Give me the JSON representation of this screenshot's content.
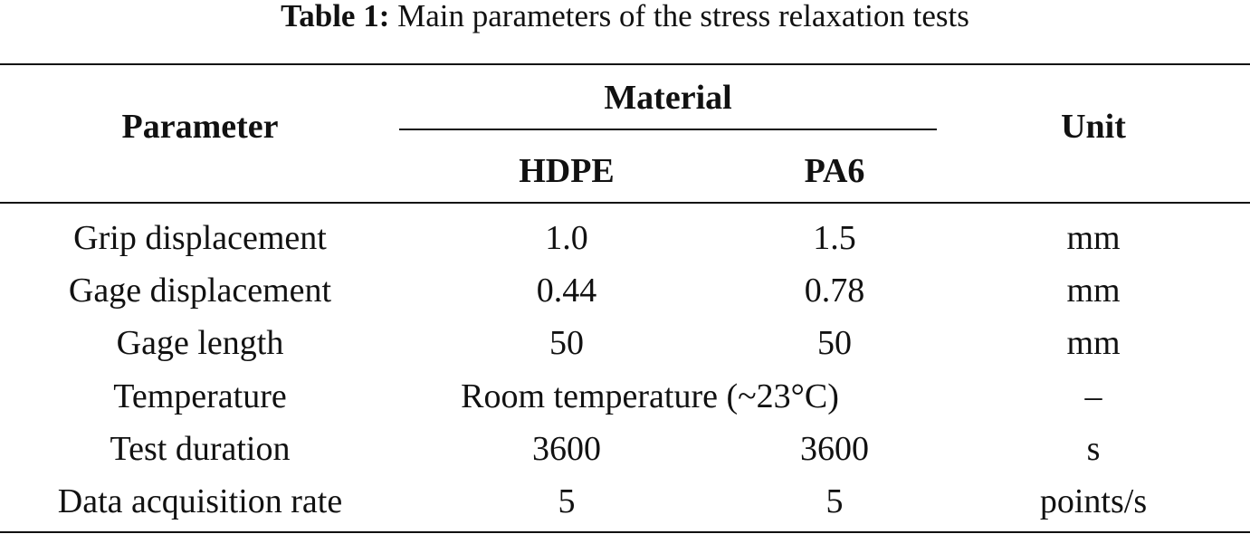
{
  "caption": {
    "label": "Table 1:",
    "text": "Main parameters of the stress relaxation tests"
  },
  "table": {
    "header": {
      "parameter": "Parameter",
      "material": "Material",
      "materials": [
        "HDPE",
        "PA6"
      ],
      "unit": "Unit"
    },
    "rows": [
      [
        "Grip displacement",
        "1.0",
        "1.5",
        "mm"
      ],
      [
        "Gage displacement",
        "0.44",
        "0.78",
        "mm"
      ],
      [
        "Gage length",
        "50",
        "50",
        "mm"
      ],
      [
        "Temperature",
        "Room temperature (~23°C)",
        "–"
      ],
      [
        "Test duration",
        "3600",
        "3600",
        "s"
      ],
      [
        "Data acquisition rate",
        "5",
        "5",
        "points/s"
      ]
    ]
  }
}
